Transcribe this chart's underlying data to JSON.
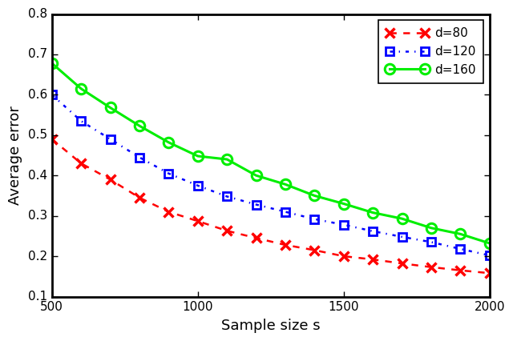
{
  "title": "",
  "xlabel": "Sample size s",
  "ylabel": "Average error",
  "xlim": [
    500,
    2000
  ],
  "ylim": [
    0.1,
    0.8
  ],
  "x": [
    500,
    600,
    700,
    800,
    900,
    1000,
    1100,
    1200,
    1300,
    1400,
    1500,
    1600,
    1700,
    1800,
    1900,
    2000
  ],
  "d80": [
    0.49,
    0.43,
    0.39,
    0.345,
    0.31,
    0.287,
    0.263,
    0.245,
    0.228,
    0.215,
    0.2,
    0.192,
    0.182,
    0.173,
    0.165,
    0.158
  ],
  "d120": [
    0.6,
    0.535,
    0.49,
    0.445,
    0.405,
    0.375,
    0.348,
    0.328,
    0.31,
    0.292,
    0.278,
    0.262,
    0.248,
    0.235,
    0.218,
    0.202
  ],
  "d160": [
    0.678,
    0.615,
    0.568,
    0.523,
    0.482,
    0.448,
    0.44,
    0.4,
    0.378,
    0.35,
    0.33,
    0.308,
    0.293,
    0.27,
    0.255,
    0.232
  ],
  "color_d80": "#ff0000",
  "color_d120": "#0000ff",
  "color_d160": "#00ee00",
  "legend_labels": [
    "d=80",
    "d=120",
    "d=160"
  ],
  "yticks": [
    0.1,
    0.2,
    0.3,
    0.4,
    0.5,
    0.6,
    0.7,
    0.8
  ],
  "xticks": [
    500,
    1000,
    1500,
    2000
  ],
  "bg_color": "#ffffff",
  "fig_bg": "#ffffff",
  "axes_linewidth": 2.0,
  "spine_color": "#000000",
  "tick_labelsize": 11,
  "xlabel_fontsize": 13,
  "ylabel_fontsize": 13,
  "legend_fontsize": 11
}
